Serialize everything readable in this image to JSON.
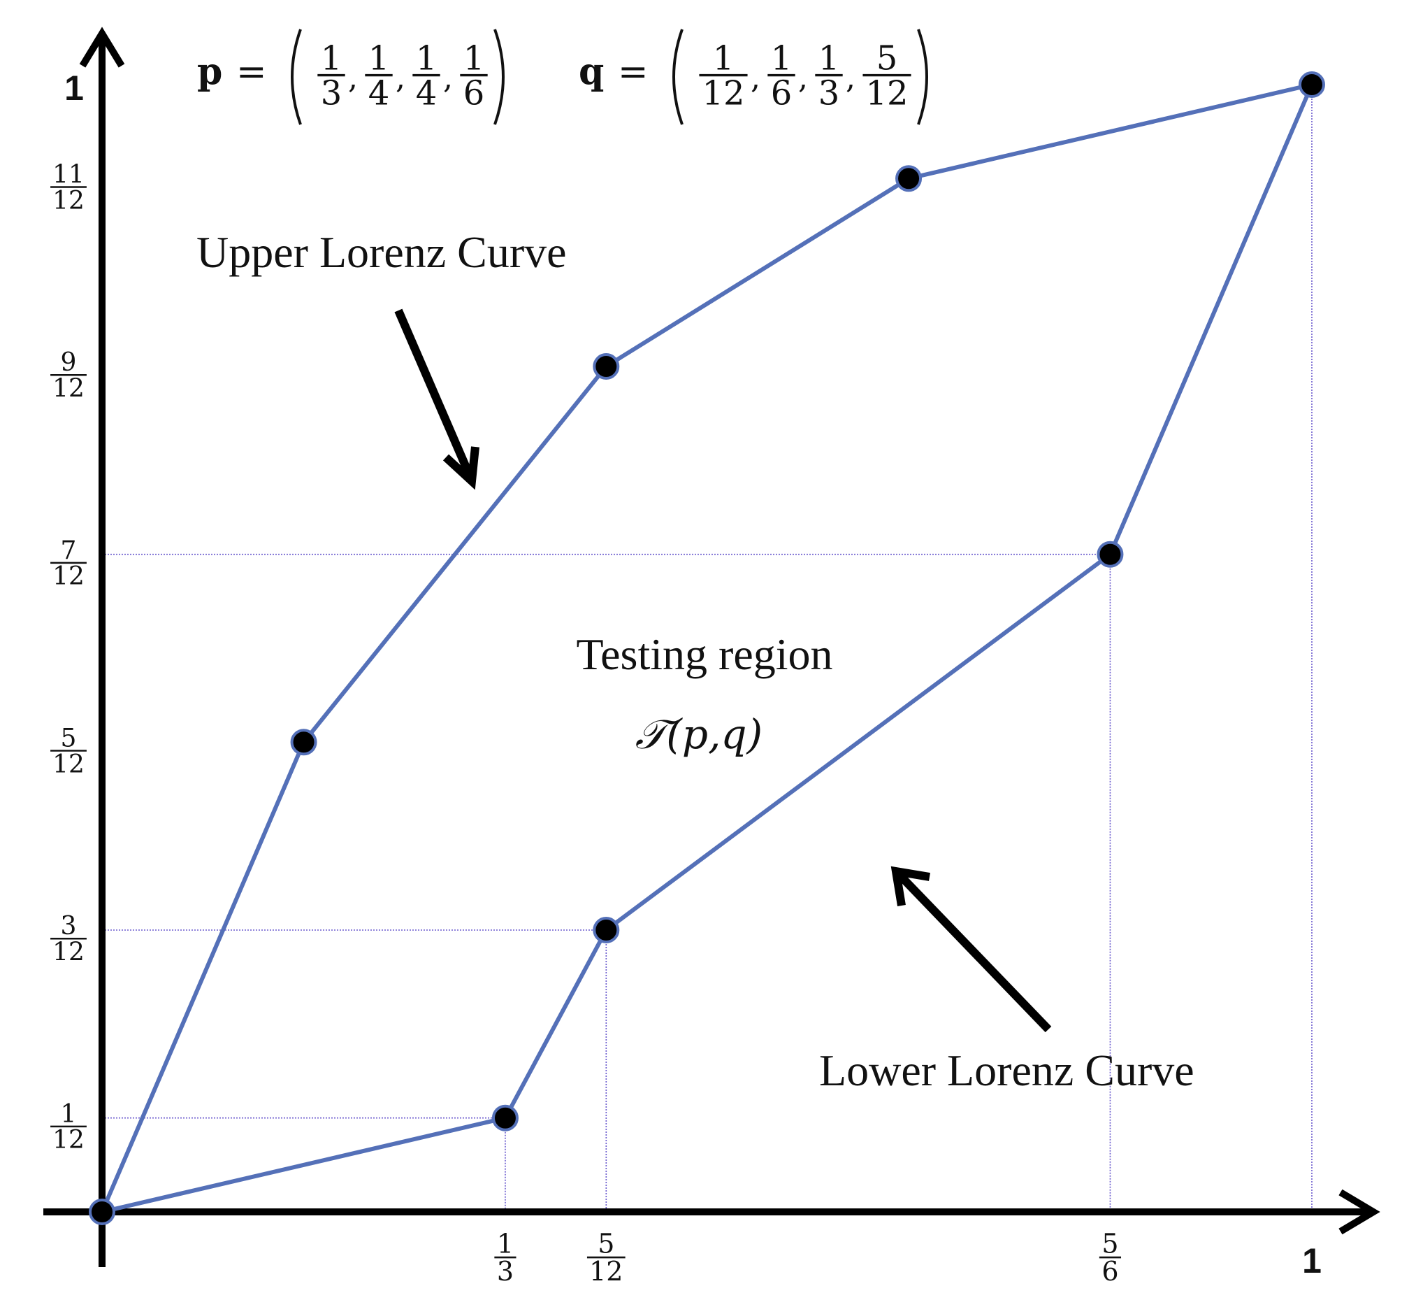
{
  "chart_data": {
    "type": "line",
    "title": "",
    "xlabel": "",
    "ylabel": "",
    "xlim": [
      0,
      1
    ],
    "ylim": [
      0,
      1
    ],
    "grid": false,
    "formulas": {
      "p": {
        "name": "p",
        "values": [
          {
            "num": "1",
            "den": "3"
          },
          {
            "num": "1",
            "den": "4"
          },
          {
            "num": "1",
            "den": "4"
          },
          {
            "num": "1",
            "den": "6"
          }
        ]
      },
      "q": {
        "name": "q",
        "values": [
          {
            "num": "1",
            "den": "12"
          },
          {
            "num": "1",
            "den": "6"
          },
          {
            "num": "1",
            "den": "3"
          },
          {
            "num": "5",
            "den": "12"
          }
        ]
      }
    },
    "x_ticks": [
      {
        "value": 0.3333,
        "num": "1",
        "den": "3"
      },
      {
        "value": 0.4167,
        "num": "5",
        "den": "12"
      },
      {
        "value": 0.8333,
        "num": "5",
        "den": "6"
      },
      {
        "value": 1.0,
        "label": "1"
      }
    ],
    "y_ticks": [
      {
        "value": 0.0833,
        "num": "1",
        "den": "12"
      },
      {
        "value": 0.25,
        "num": "3",
        "den": "12"
      },
      {
        "value": 0.4167,
        "num": "5",
        "den": "12"
      },
      {
        "value": 0.5833,
        "num": "7",
        "den": "12"
      },
      {
        "value": 0.75,
        "num": "9",
        "den": "12"
      },
      {
        "value": 0.9167,
        "num": "11",
        "den": "12"
      },
      {
        "value": 1.0,
        "label": "1"
      }
    ],
    "series": [
      {
        "name": "Upper Lorenz Curve",
        "color": "#5470b8",
        "points": [
          [
            0,
            0
          ],
          [
            0.1667,
            0.4167
          ],
          [
            0.4167,
            0.75
          ],
          [
            0.6667,
            0.9167
          ],
          [
            1.0,
            1.0
          ]
        ]
      },
      {
        "name": "Lower Lorenz Curve",
        "color": "#5470b8",
        "points": [
          [
            0,
            0
          ],
          [
            0.3333,
            0.0833
          ],
          [
            0.4167,
            0.25
          ],
          [
            0.8333,
            0.5833
          ],
          [
            1.0,
            1.0
          ]
        ]
      }
    ],
    "reference_lines": [
      {
        "type": "h",
        "y": 0.0833,
        "x_to": 0.3333
      },
      {
        "type": "h",
        "y": 0.25,
        "x_to": 0.4167
      },
      {
        "type": "h",
        "y": 0.5833,
        "x_to": 0.8333
      },
      {
        "type": "v",
        "x": 0.3333,
        "y_to": 0.0833
      },
      {
        "type": "v",
        "x": 0.4167,
        "y_to": 0.25
      },
      {
        "type": "v",
        "x": 0.8333,
        "y_to": 0.5833
      },
      {
        "type": "v",
        "x": 1.0,
        "y_to": 1.0
      }
    ],
    "annotations": {
      "upper_label": "Upper Lorenz Curve",
      "lower_label": "Lower Lorenz Curve",
      "region_label": "Testing region",
      "region_symbol": "𝒯(p,q)"
    },
    "colors": {
      "curve": "#5470b8",
      "marker": "#000000",
      "guide": "#6a5acd",
      "axis": "#000000"
    }
  }
}
